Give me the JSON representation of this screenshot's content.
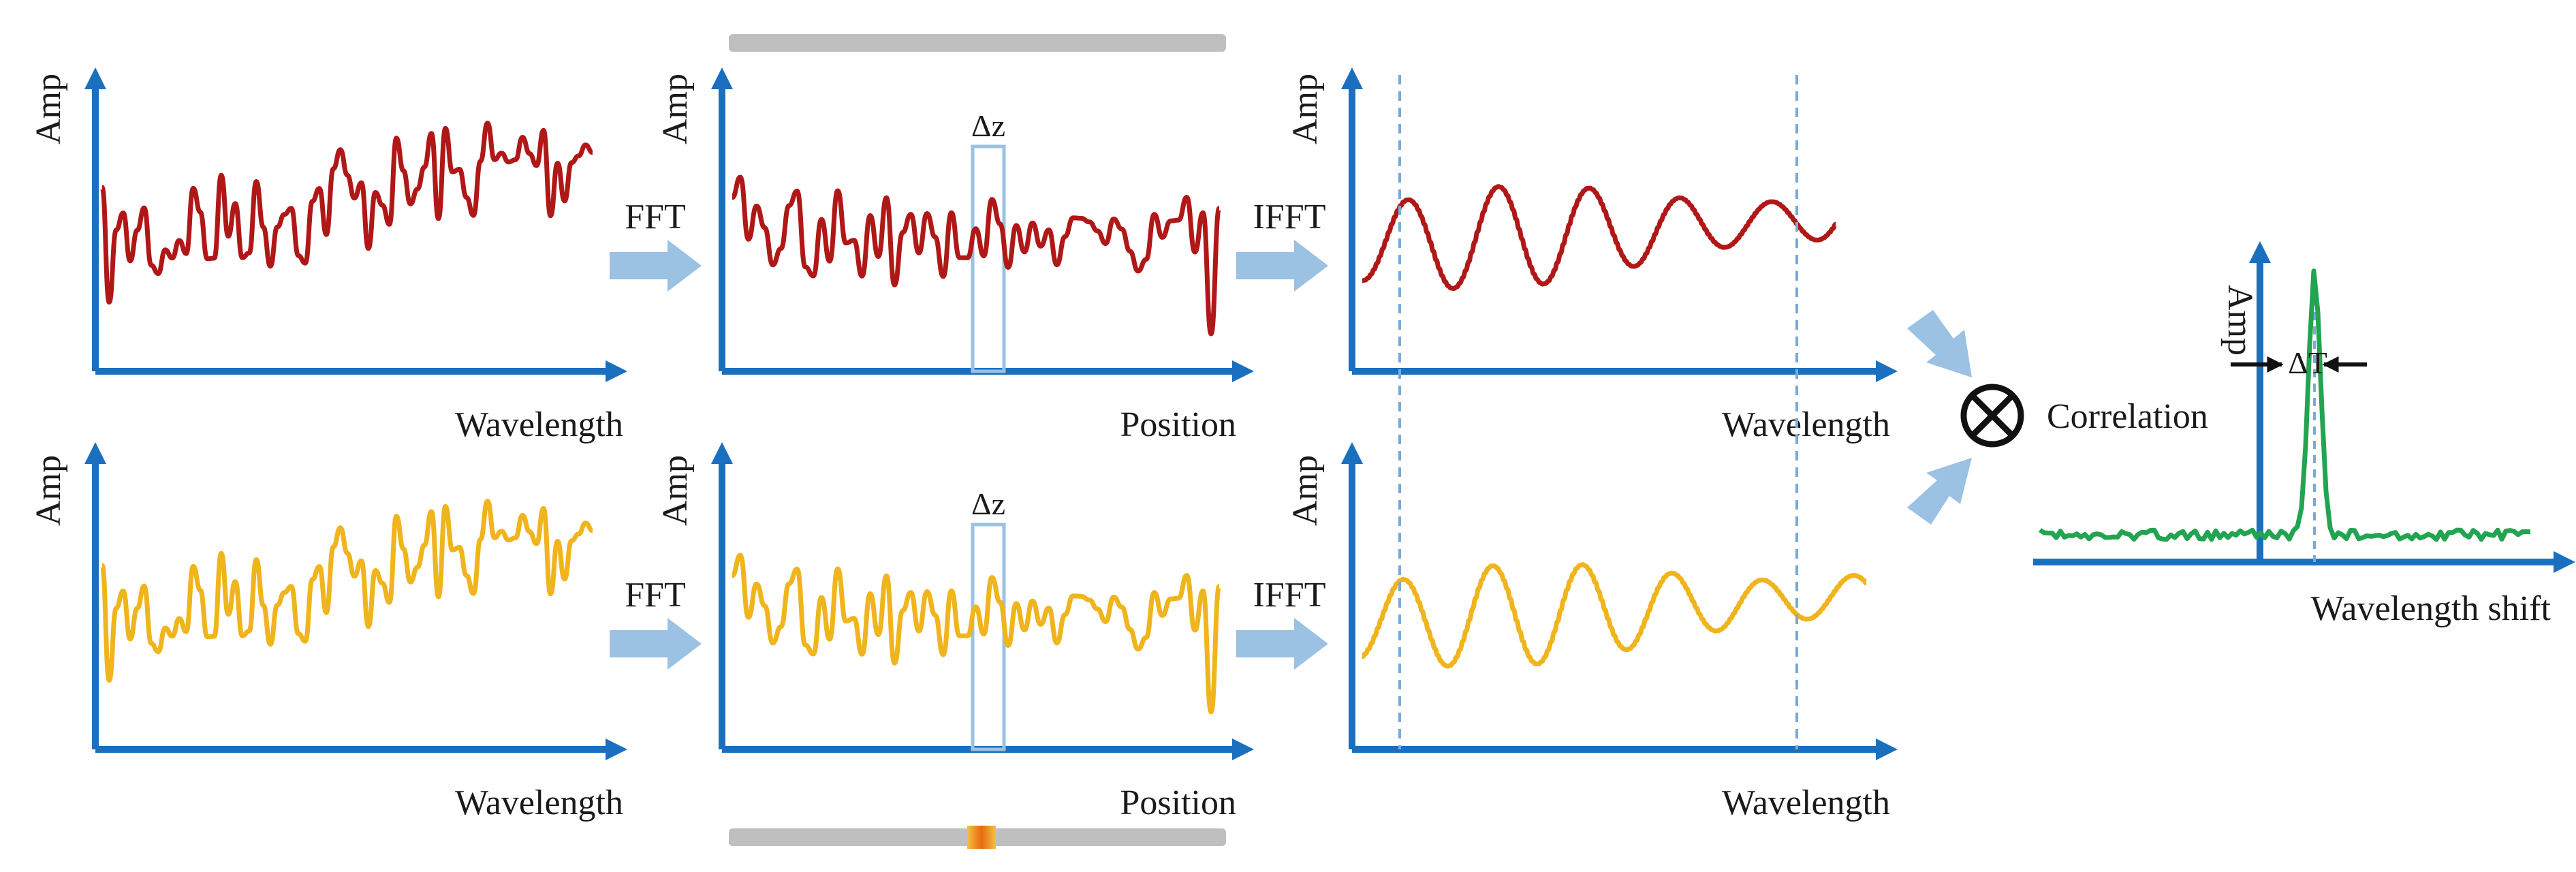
{
  "colors": {
    "axis": "#1a6fbf",
    "reference": "#b01818",
    "measured": "#f0b41c",
    "correlation": "#22a450",
    "flow_arrow": "#9bc1e3",
    "fiber": "#bfbfbf",
    "window": "#9bc1e3",
    "guide": "#7aaad8",
    "hotspot": "#f08a1c"
  },
  "labels": {
    "amp": "Amp",
    "wavelength": "Wavelength",
    "position": "Position",
    "fft": "FFT",
    "ifft": "IFFT",
    "delta_z": "Δz",
    "correlation": "Correlation",
    "wavelength_shift": "Wavelength shift",
    "delta_t": "ΔT"
  },
  "icons": {
    "correlation_operator": "circled-times-icon",
    "flow": "thick-arrow-icon"
  }
}
